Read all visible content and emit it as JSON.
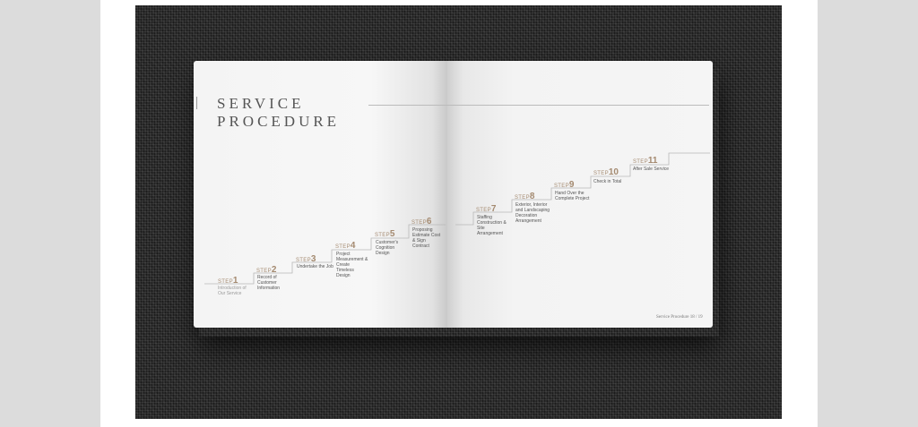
{
  "document": {
    "title_line1": "SERVICE",
    "title_line2": "PROCEDURE",
    "footer": "Service Procedure 18 / 19"
  },
  "steps": [
    {
      "word": "STEP",
      "num": "1",
      "label": "Introduction of Our Service"
    },
    {
      "word": "STEP",
      "num": "2",
      "label": "Record of Customer Information"
    },
    {
      "word": "STEP",
      "num": "3",
      "label": "Undertake the Job"
    },
    {
      "word": "STEP",
      "num": "4",
      "label": "Project Measurement & Create Timeless Design"
    },
    {
      "word": "STEP",
      "num": "5",
      "label": "Customer's Cognition Design"
    },
    {
      "word": "STEP",
      "num": "6",
      "label": "Proposing Estimate Cost & Sign Contract"
    },
    {
      "word": "STEP",
      "num": "7",
      "label": "Staffing Construction & Site Arrangement"
    },
    {
      "word": "STEP",
      "num": "8",
      "label": "Exterior, Interior and Landscaping Decoration Arrangement"
    },
    {
      "word": "STEP",
      "num": "9",
      "label": "Hand Over the Complete Project"
    },
    {
      "word": "STEP",
      "num": "10",
      "label": "Check in Total"
    },
    {
      "word": "STEP",
      "num": "11",
      "label": "After Sale Service"
    }
  ]
}
